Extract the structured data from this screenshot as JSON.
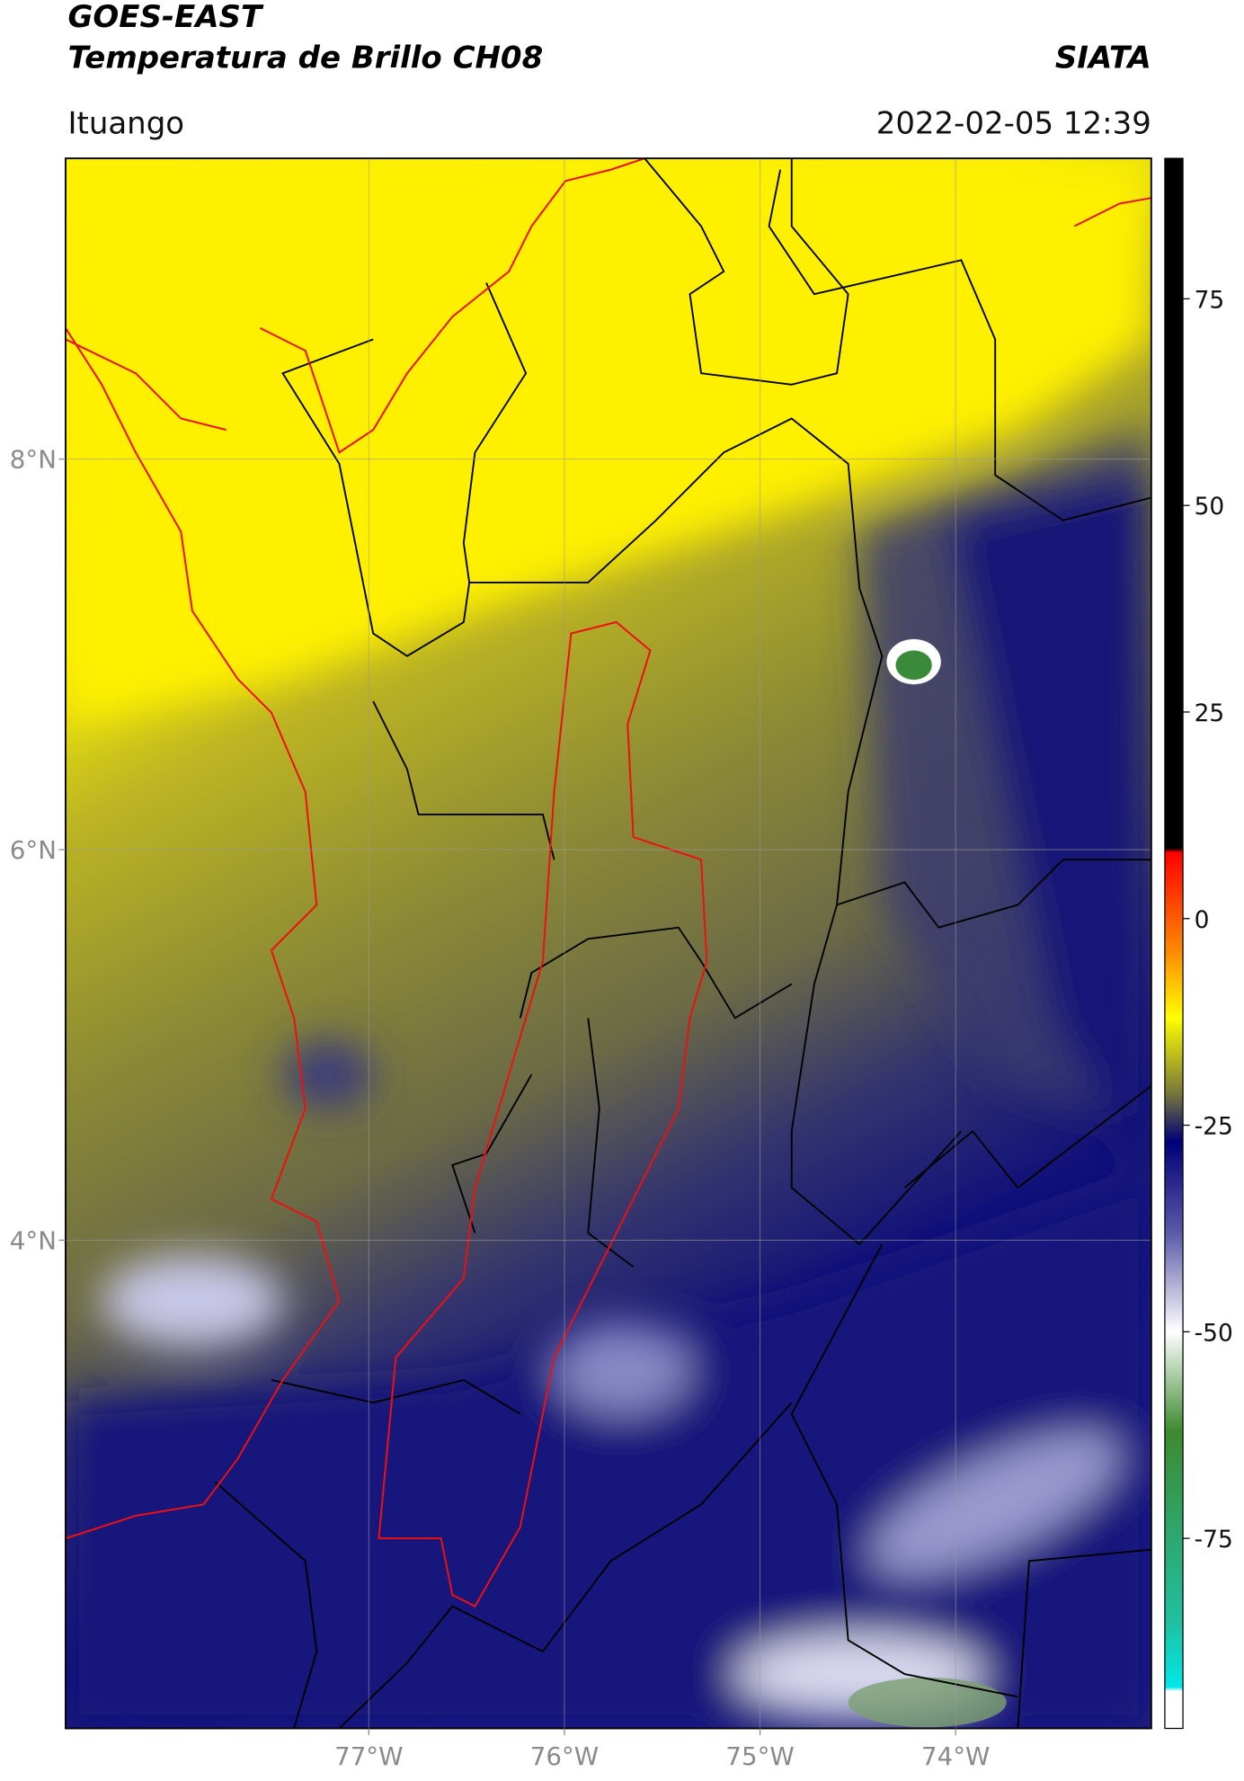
{
  "header": {
    "title": "GOES-EAST",
    "subtitle": "Temperatura de Brillo CH08",
    "source": "SIATA",
    "location": "Ituango",
    "datetime": "2022-02-05 12:39"
  },
  "map": {
    "xlim": [
      -78.55,
      -73.0
    ],
    "ylim": [
      1.5,
      9.54
    ],
    "xticks": [
      {
        "value": -77,
        "label": "77°W"
      },
      {
        "value": -76,
        "label": "76°W"
      },
      {
        "value": -75,
        "label": "75°W"
      },
      {
        "value": -74,
        "label": "74°W"
      }
    ],
    "yticks": [
      {
        "value": 8,
        "label": "8°N"
      },
      {
        "value": 6,
        "label": "6°N"
      },
      {
        "value": 4,
        "label": "4°N"
      }
    ],
    "grid": true
  },
  "colorbar": {
    "lim": [
      -98,
      92
    ],
    "ticks": [
      75,
      50,
      25,
      0,
      -25,
      -50,
      -75
    ],
    "colors": [
      {
        "value": 92,
        "color": "#000000"
      },
      {
        "value": 8.5,
        "color": "#000000"
      },
      {
        "value": 8,
        "color": "#ff0000"
      },
      {
        "value": -4,
        "color": "#ff8a00"
      },
      {
        "value": -12,
        "color": "#ffff00"
      },
      {
        "value": -21,
        "color": "#7a7a3a"
      },
      {
        "value": -27,
        "color": "#000078"
      },
      {
        "value": -38,
        "color": "#5a5aa8"
      },
      {
        "value": -50,
        "color": "#ffffff"
      },
      {
        "value": -62,
        "color": "#3d8a30"
      },
      {
        "value": -85,
        "color": "#20c0a0"
      },
      {
        "value": -93,
        "color": "#00e8e8"
      },
      {
        "value": -93.5,
        "color": "#ffffff"
      },
      {
        "value": -98,
        "color": "#ffffff"
      }
    ]
  }
}
